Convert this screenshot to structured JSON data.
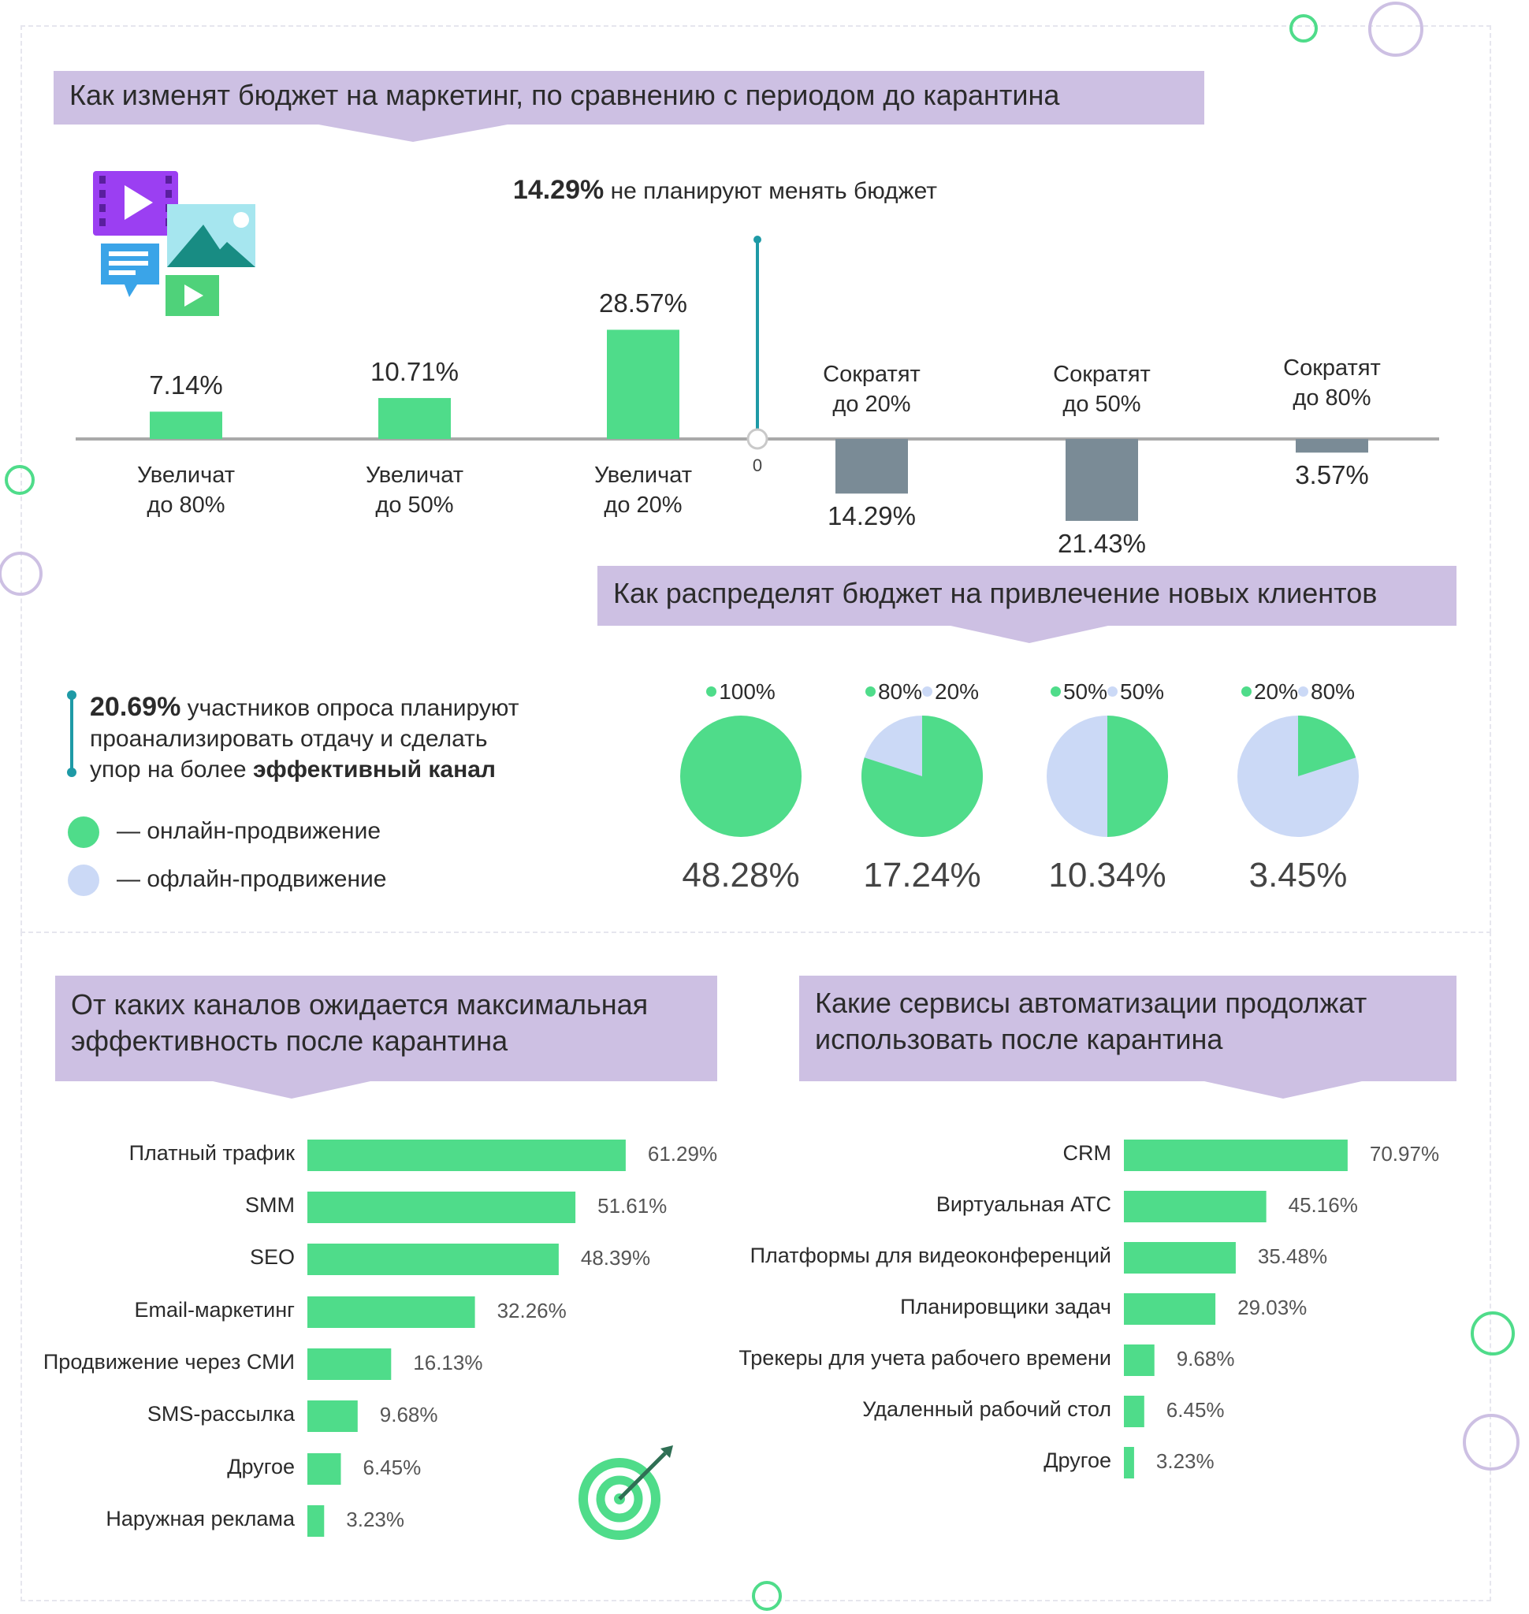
{
  "colors": {
    "online": "#4fdc8a",
    "offline": "#cbd9f6",
    "decrease": "#7a8b96",
    "banner": "#cdc0e3",
    "accent": "#1e9aa6"
  },
  "section1": {
    "title": "Как изменят бюджет на маркетинг, по сравнению с периодом до карантина",
    "note_value": "14.29%",
    "note_text": " не планируют менять бюджет",
    "zero_label": "0",
    "icon": "media-content-icon"
  },
  "chart_data": [
    {
      "type": "bar",
      "title": "Как изменят бюджет на маркетинг, по сравнению с периодом до карантина",
      "categories": [
        "Увеличат до 80%",
        "Увеличат до 50%",
        "Увеличат до 20%",
        "Сократят до 20%",
        "Сократят до 50%",
        "Сократят до 80%"
      ],
      "values": [
        7.14,
        10.71,
        28.57,
        -14.29,
        -21.43,
        -3.57
      ],
      "value_labels": [
        "7.14%",
        "10.71%",
        "28.57%",
        "14.29%",
        "21.43%",
        "3.57%"
      ],
      "label_lines": [
        [
          "Увеличат",
          "до 80%"
        ],
        [
          "Увеличат",
          "до 50%"
        ],
        [
          "Увеличат",
          "до 20%"
        ],
        [
          "Сократят",
          "до 20%"
        ],
        [
          "Сократят",
          "до 50%"
        ],
        [
          "Сократят",
          "до 80%"
        ]
      ],
      "baseline": 0,
      "annotation": "14.29% не планируют менять бюджет"
    },
    {
      "type": "pie",
      "title": "Как распределят бюджет на привлечение новых клиентов",
      "series_names": [
        "онлайн-продвижение",
        "офлайн-продвижение"
      ],
      "pies": [
        {
          "online": 100,
          "offline": 0,
          "share": "48.28%",
          "online_label": "100%",
          "offline_label": ""
        },
        {
          "online": 80,
          "offline": 20,
          "share": "17.24%",
          "online_label": "80%",
          "offline_label": "20%"
        },
        {
          "online": 50,
          "offline": 50,
          "share": "10.34%",
          "online_label": "50%",
          "offline_label": "50%"
        },
        {
          "online": 20,
          "offline": 80,
          "share": "3.45%",
          "online_label": "20%",
          "offline_label": "80%"
        }
      ]
    },
    {
      "type": "bar",
      "orientation": "horizontal",
      "title": "От каких каналов ожидается максимальная эффективность после карантина",
      "categories": [
        "Платный трафик",
        "SMM",
        "SEO",
        "Email-маркетинг",
        "Продвижение через СМИ",
        "SMS-рассылка",
        "Другое",
        "Наружная реклама"
      ],
      "values": [
        61.29,
        51.61,
        48.39,
        32.26,
        16.13,
        9.68,
        6.45,
        3.23
      ],
      "value_labels": [
        "61.29%",
        "51.61%",
        "48.39%",
        "32.26%",
        "16.13%",
        "9.68%",
        "6.45%",
        "3.23%"
      ]
    },
    {
      "type": "bar",
      "orientation": "horizontal",
      "title": "Какие сервисы автоматизации продолжат использовать после карантина",
      "categories": [
        "CRM",
        "Виртуальная АТС",
        "Платформы для видеоконференций",
        "Планировщики задач",
        "Трекеры для учета рабочего времени",
        "Удаленный рабочий стол",
        "Другое"
      ],
      "values": [
        70.97,
        45.16,
        35.48,
        29.03,
        9.68,
        6.45,
        3.23
      ],
      "value_labels": [
        "70.97%",
        "45.16%",
        "35.48%",
        "29.03%",
        "9.68%",
        "6.45%",
        "3.23%"
      ]
    }
  ],
  "section2": {
    "title": "Как распределят бюджет на привлечение новых клиентов",
    "note_value": "20.69%",
    "note_text_1": " участников опроса планируют",
    "note_text_2": "проанализировать отдачу и сделать",
    "note_text_3": "упор на более ",
    "note_bold": "эффективный канал",
    "legend_online": "— онлайн-продвижение",
    "legend_offline": "— офлайн-продвижение"
  },
  "section3": {
    "title_line1": "От каких каналов ожидается максимальная",
    "title_line2": "эффективность после карантина",
    "icon": "target-icon"
  },
  "section4": {
    "title_line1": "Какие сервисы автоматизации продолжат",
    "title_line2": "использовать после карантина"
  }
}
